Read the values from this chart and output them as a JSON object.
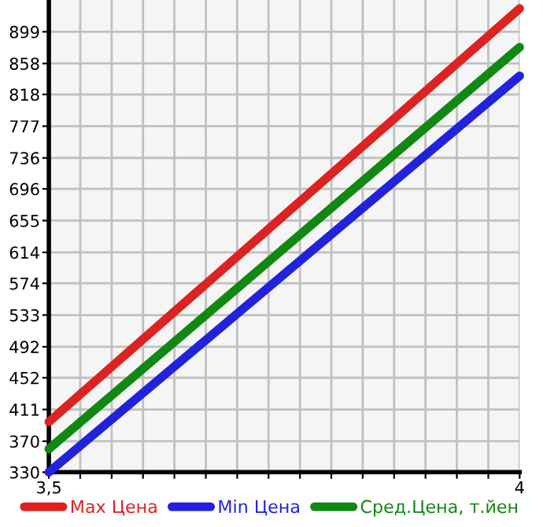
{
  "chart_data": {
    "type": "line",
    "x": [
      3.5,
      4
    ],
    "series": [
      {
        "name": "Max Цена",
        "color": "#dd2222",
        "values": [
          395,
          929
        ]
      },
      {
        "name": "Min Цена",
        "color": "#2222dd",
        "values": [
          330,
          842
        ]
      },
      {
        "name": "Сред.Цена, т.йен",
        "color": "#118811",
        "values": [
          360,
          879
        ]
      }
    ],
    "xlim": [
      3.5,
      4
    ],
    "xticks": [
      {
        "value": 3.5,
        "label": "3,5"
      },
      {
        "value": 3.5333,
        "label": null
      },
      {
        "value": 3.5667,
        "label": null
      },
      {
        "value": 3.6,
        "label": null
      },
      {
        "value": 3.6333,
        "label": null
      },
      {
        "value": 3.6667,
        "label": null
      },
      {
        "value": 3.7,
        "label": null
      },
      {
        "value": 3.7333,
        "label": null
      },
      {
        "value": 3.7667,
        "label": null
      },
      {
        "value": 3.8,
        "label": null
      },
      {
        "value": 3.8333,
        "label": null
      },
      {
        "value": 3.8667,
        "label": null
      },
      {
        "value": 3.9,
        "label": null
      },
      {
        "value": 3.9333,
        "label": null
      },
      {
        "value": 3.9667,
        "label": null
      },
      {
        "value": 4,
        "label": "4"
      }
    ],
    "ylim": [
      330,
      940
    ],
    "yticks": [
      330,
      370,
      411,
      452,
      492,
      533,
      574,
      614,
      655,
      696,
      736,
      777,
      818,
      858,
      899
    ],
    "grid": true,
    "legend": "bottom",
    "marker": "none",
    "line_style": "solid"
  }
}
